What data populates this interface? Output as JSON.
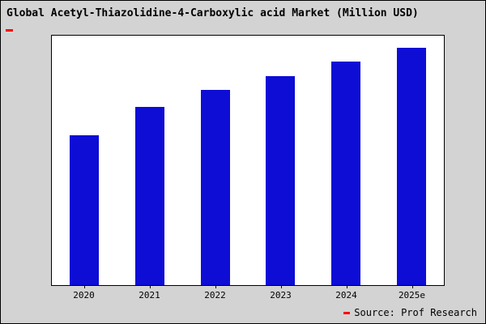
{
  "title": "Global Acetyl-Thiazolidine-4-Carboxylic acid Market (Million USD)",
  "source": "Source: Prof Research",
  "colors": {
    "bar": "#0d0dd6",
    "background": "#d3d3d3",
    "plot_background": "#ffffff",
    "accent": "#ff0000",
    "border": "#000000"
  },
  "chart_data": {
    "type": "bar",
    "title": "Global Acetyl-Thiazolidine-4-Carboxylic acid Market (Million USD)",
    "categories": [
      "2020",
      "2021",
      "2022",
      "2023",
      "2024",
      "2025e"
    ],
    "values": [
      63,
      75,
      82,
      88,
      94,
      100
    ],
    "xlabel": "",
    "ylabel": "",
    "ylim": [
      0,
      105
    ],
    "grid": false,
    "legend": false,
    "y_axis_labels_visible": false,
    "source_annotation": "Source: Prof Research"
  }
}
